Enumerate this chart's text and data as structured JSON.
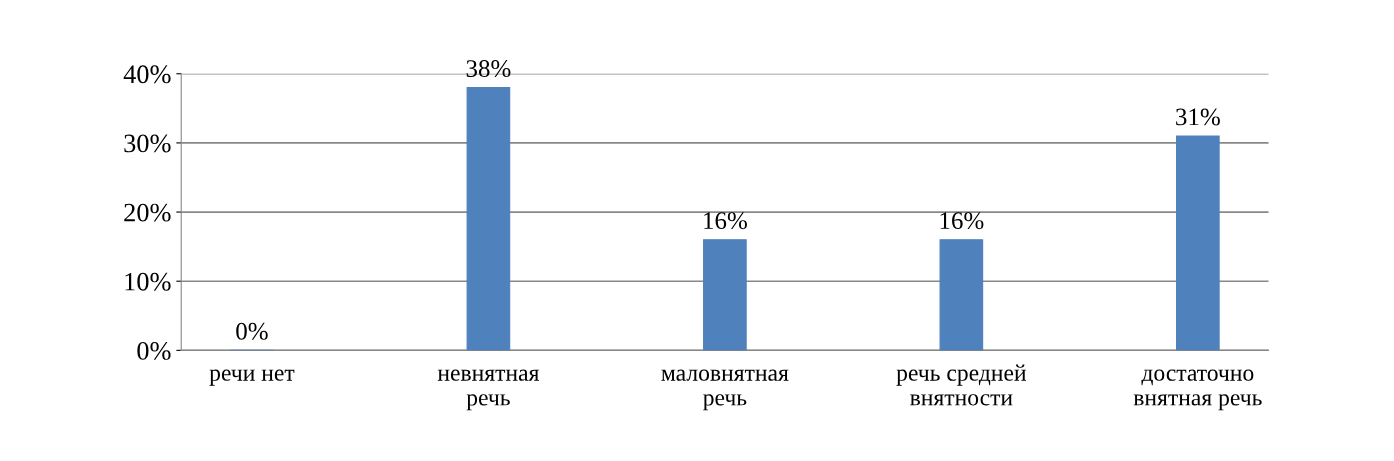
{
  "chart_data": {
    "type": "bar",
    "categories": [
      "речи нет",
      "невнятная\nречь",
      "маловнятная\nречь",
      "речь средней\nвнятности",
      "достаточно\nвнятная речь"
    ],
    "values": [
      0,
      38,
      16,
      16,
      31
    ],
    "value_labels": [
      "0%",
      "38%",
      "16%",
      "16%",
      "31%"
    ],
    "color": "#4f81bd",
    "ylim": [
      0,
      40
    ],
    "yticks": [
      {
        "value": 0,
        "label": "0%"
      },
      {
        "value": 10,
        "label": "10%"
      },
      {
        "value": 20,
        "label": "20%"
      },
      {
        "value": 30,
        "label": "30%"
      },
      {
        "value": 40,
        "label": "40%"
      }
    ],
    "grid": "y",
    "legend": false
  }
}
